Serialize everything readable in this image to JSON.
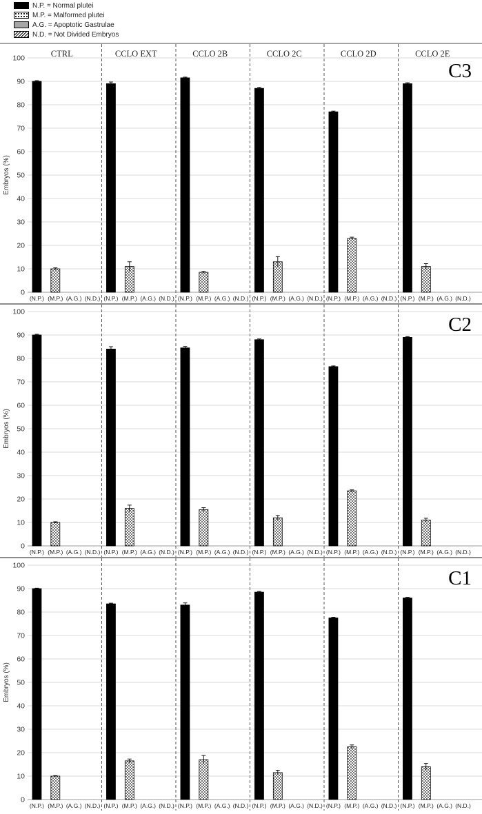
{
  "legend": [
    {
      "label": "N.P. = Normal plutei",
      "pattern": "solid",
      "color": "#000000"
    },
    {
      "label": "M.P. = Malformed plutei",
      "pattern": "dots",
      "color": "#ffffff"
    },
    {
      "label": "A.G. = Apoptotic Gastrulae",
      "pattern": "gray",
      "color": "#a6a6a6"
    },
    {
      "label": "N.D. = Not Divided Embryos",
      "pattern": "hatch",
      "color": "#ffffff"
    }
  ],
  "chart_data": {
    "type": "bar",
    "groups": [
      "CTRL",
      "CCLO EXT",
      "CCLO 2B",
      "CCLO 2C",
      "CCLO 2D",
      "CCLO 2E"
    ],
    "categories": [
      "(N.P.)",
      "(M.P.)",
      "(A.G.)",
      "(N.D.)"
    ],
    "ylabel": "Embryos (%)",
    "ylim": [
      0,
      100
    ],
    "yticks": [
      0,
      10,
      20,
      30,
      40,
      50,
      60,
      70,
      80,
      90,
      100
    ],
    "grid": true,
    "legend_position": "top-left",
    "panels": [
      {
        "title": "C3",
        "values": [
          [
            90,
            10,
            0,
            0
          ],
          [
            89,
            11,
            0,
            0
          ],
          [
            91.5,
            8.5,
            0,
            0
          ],
          [
            87,
            13,
            0,
            0
          ],
          [
            77,
            23,
            0,
            0
          ],
          [
            89,
            11,
            0,
            0
          ]
        ],
        "errors": [
          [
            0.3,
            0.4,
            0,
            0
          ],
          [
            0.7,
            2.0,
            0,
            0
          ],
          [
            0.3,
            0.4,
            0,
            0
          ],
          [
            0.5,
            2.2,
            0,
            0
          ],
          [
            0.3,
            0.5,
            0,
            0
          ],
          [
            0.4,
            1.2,
            0,
            0
          ]
        ]
      },
      {
        "title": "C2",
        "values": [
          [
            90,
            10,
            0,
            0
          ],
          [
            84,
            16,
            0,
            0
          ],
          [
            84.5,
            15.5,
            0,
            0
          ],
          [
            88,
            12,
            0,
            0
          ],
          [
            76.5,
            23.5,
            0,
            0
          ],
          [
            89,
            11,
            0,
            0
          ]
        ],
        "errors": [
          [
            0.3,
            0.3,
            0,
            0
          ],
          [
            1.0,
            1.4,
            0,
            0
          ],
          [
            0.6,
            0.8,
            0,
            0
          ],
          [
            0.3,
            1.0,
            0,
            0
          ],
          [
            0.3,
            0.4,
            0,
            0
          ],
          [
            0.3,
            0.8,
            0,
            0
          ]
        ]
      },
      {
        "title": "C1",
        "values": [
          [
            90,
            10,
            0,
            0
          ],
          [
            83.5,
            16.5,
            0,
            0
          ],
          [
            83,
            17,
            0,
            0
          ],
          [
            88.5,
            11.5,
            0,
            0
          ],
          [
            77.5,
            22.5,
            0,
            0
          ],
          [
            86,
            14,
            0,
            0
          ]
        ],
        "errors": [
          [
            0.2,
            0.2,
            0,
            0
          ],
          [
            0.3,
            0.8,
            0,
            0
          ],
          [
            0.9,
            1.8,
            0,
            0
          ],
          [
            0.3,
            1.0,
            0,
            0
          ],
          [
            0.3,
            0.8,
            0,
            0
          ],
          [
            0.3,
            1.4,
            0,
            0
          ]
        ]
      }
    ]
  }
}
